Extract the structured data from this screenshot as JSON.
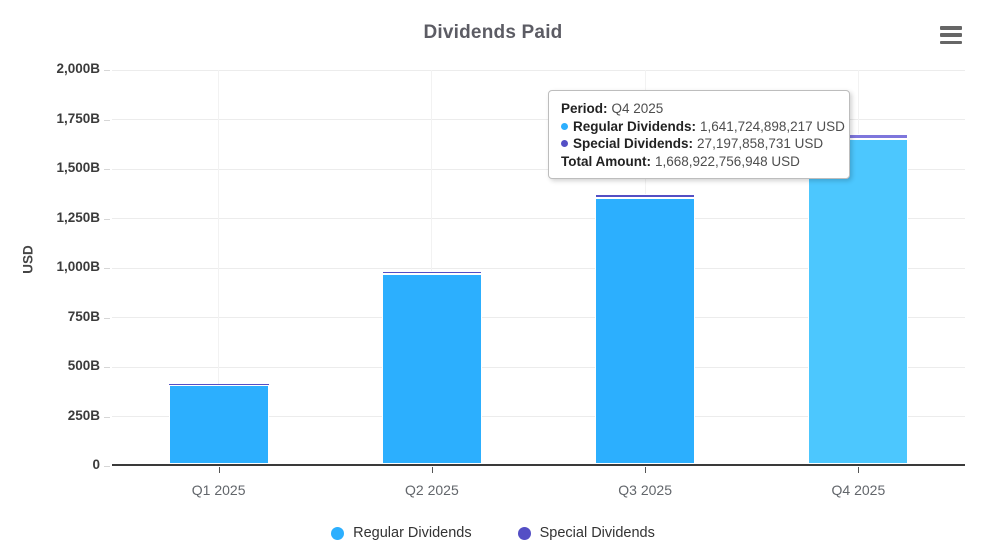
{
  "title": "Dividends Paid",
  "icons": {
    "menu": "hamburger-menu-icon",
    "legend_marker": "circle-marker-icon"
  },
  "colors": {
    "regular": "#2caffe",
    "regular_hover": "#4cc7fe",
    "special": "#544fc5",
    "special_hover": "#7e76dc",
    "axis_line": "#3a3a3a",
    "grid_line": "#ececec",
    "title_text": "#5c5c64"
  },
  "chart_data": {
    "type": "bar",
    "stacked": true,
    "title": "Dividends Paid",
    "xlabel": "",
    "ylabel": "USD",
    "categories": [
      "Q1 2025",
      "Q2 2025",
      "Q3 2025",
      "Q4 2025"
    ],
    "series": [
      {
        "name": "Regular Dividends",
        "color": "#2caffe",
        "hover_color": "#4cc7fe",
        "values_billions_usd": [
          399,
          960,
          1343,
          1641.7
        ]
      },
      {
        "name": "Special Dividends",
        "color": "#544fc5",
        "hover_color": "#7e76dc",
        "values_billions_usd": [
          3,
          17,
          20,
          27.2
        ]
      }
    ],
    "ylim": [
      0,
      2000
    ],
    "y_tick_labels": [
      "0",
      "250B",
      "500B",
      "750B",
      "1,000B",
      "1,250B",
      "1,500B",
      "1,750B",
      "2,000B"
    ],
    "grid": true,
    "legend_position": "bottom",
    "hovered_category_index": 3
  },
  "tooltip": {
    "period_label": "Period:",
    "period_value": "Q4 2025",
    "rows": [
      {
        "name": "Regular Dividends:",
        "value": "1,641,724,898,217 USD"
      },
      {
        "name": "Special Dividends:",
        "value": "27,197,858,731 USD"
      }
    ],
    "total_label": "Total Amount:",
    "total_value": "1,668,922,756,948 USD"
  }
}
